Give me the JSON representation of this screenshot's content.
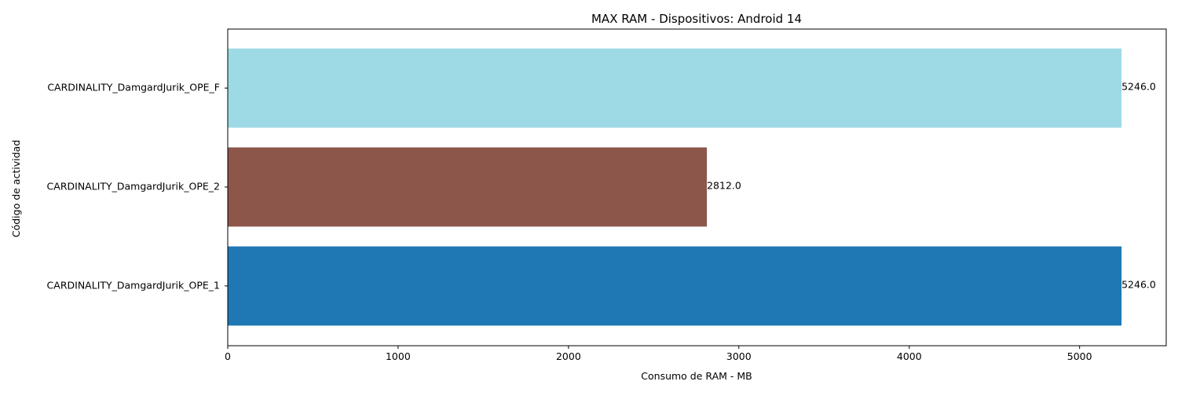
{
  "chart_data": {
    "type": "bar",
    "orientation": "horizontal",
    "title": "MAX RAM - Dispositivos: Android 14",
    "xlabel": "Consumo de RAM - MB",
    "ylabel": "Código de actividad",
    "categories": [
      "CARDINALITY_DamgardJurik_OPE_1",
      "CARDINALITY_DamgardJurik_OPE_2",
      "CARDINALITY_DamgardJurik_OPE_F"
    ],
    "values": [
      5246.0,
      2812.0,
      5246.0
    ],
    "data_labels": [
      "5246.0",
      "2812.0",
      "5246.0"
    ],
    "colors": [
      "#1f77b4",
      "#8c564b",
      "#9edae5"
    ],
    "xlim": [
      0,
      5508.3
    ],
    "xticks": [
      0,
      1000,
      2000,
      3000,
      4000,
      5000
    ],
    "xtick_labels": [
      "0",
      "1000",
      "2000",
      "3000",
      "4000",
      "5000"
    ],
    "grid": false,
    "legend": "none"
  }
}
